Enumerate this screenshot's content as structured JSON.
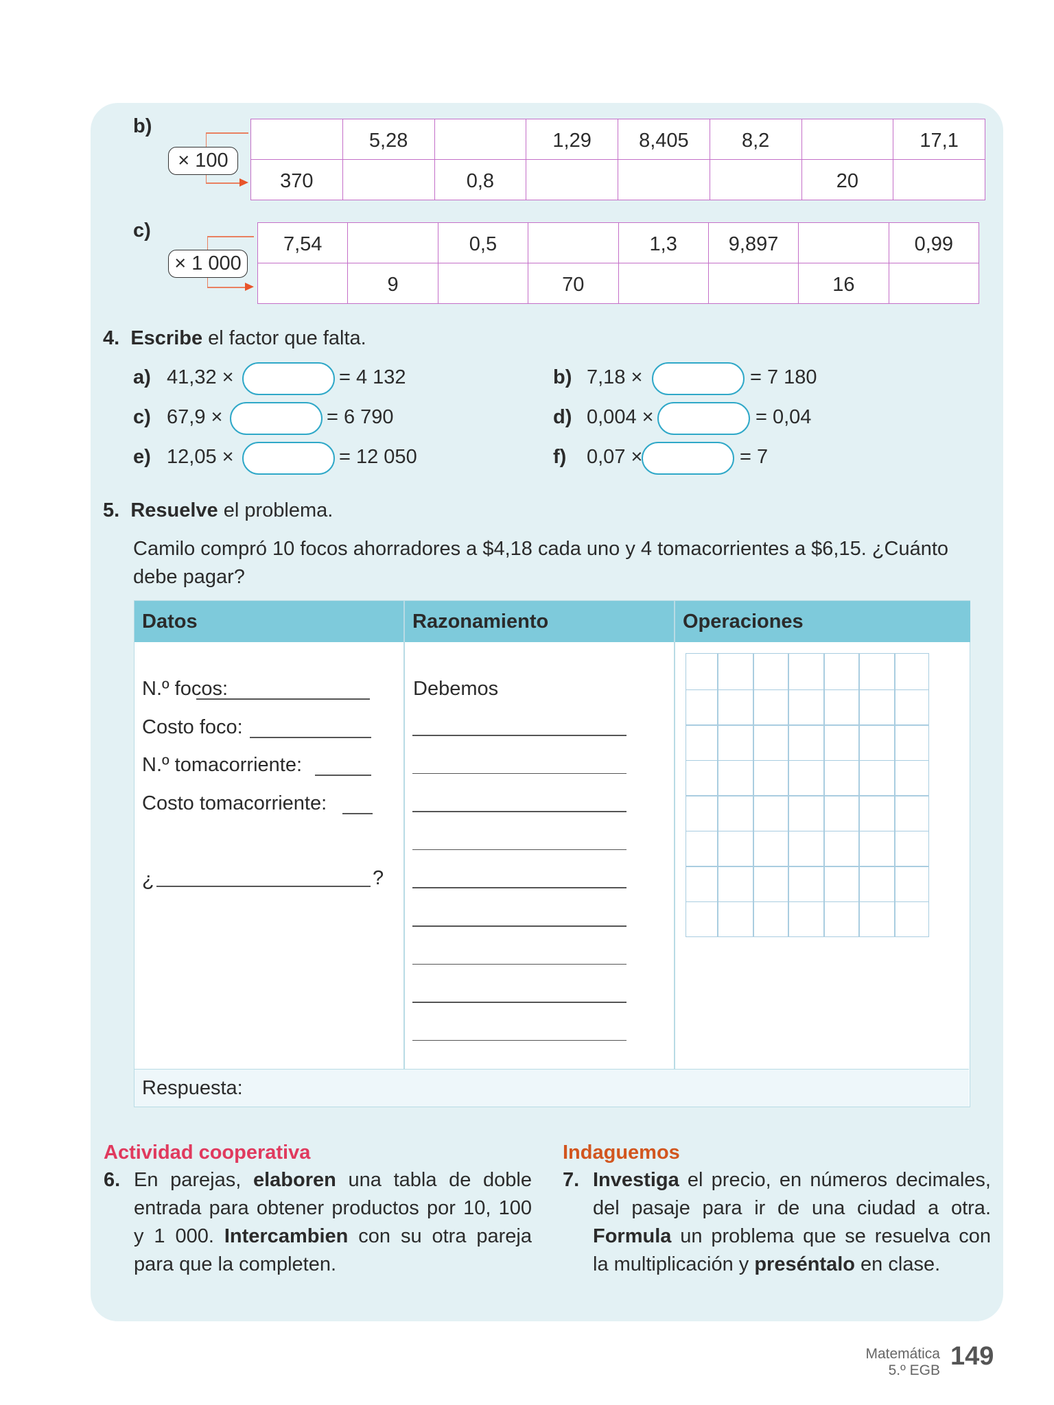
{
  "exercise_3": {
    "b": {
      "label": "b)",
      "multiplier": "× 100",
      "top": [
        "",
        "5,28",
        "",
        "1,29",
        "8,405",
        "8,2",
        "",
        "17,1"
      ],
      "bottom": [
        "370",
        "",
        "0,8",
        "",
        "",
        "",
        "20",
        ""
      ]
    },
    "c": {
      "label": "c)",
      "multiplier": "× 1 000",
      "top": [
        "7,54",
        "",
        "0,5",
        "",
        "1,3",
        "9,897",
        "",
        "0,99"
      ],
      "bottom": [
        "",
        "9",
        "",
        "70",
        "",
        "",
        "16",
        ""
      ]
    }
  },
  "exercise_4": {
    "number": "4.",
    "verb": "Escribe",
    "rest": " el factor que falta.",
    "items": [
      {
        "label": "a)",
        "left": "41,32 ×",
        "right": "= 4 132"
      },
      {
        "label": "b)",
        "left": "7,18 ×",
        "right": "= 7 180"
      },
      {
        "label": "c)",
        "left": "67,9 ×",
        "right": "= 6 790"
      },
      {
        "label": "d)",
        "left": "0,004 ×",
        "right": "= 0,04"
      },
      {
        "label": "e)",
        "left": "12,05 ×",
        "right": "= 12 050"
      },
      {
        "label": "f)",
        "left": "0,07 ×",
        "right": "= 7"
      }
    ]
  },
  "exercise_5": {
    "number": "5.",
    "verb": "Resuelve",
    "rest": " el problema.",
    "problem_line1": "Camilo compró 10 focos ahorradores a $4,18 cada uno y 4 tomacorrientes a $6,15. ¿Cuánto",
    "problem_line2": "debe pagar?",
    "headers": [
      "Datos",
      "Razonamiento",
      "Operaciones"
    ],
    "datos": [
      "N.º focos:",
      "Costo foco:",
      "N.º tomacorriente:",
      "Costo tomacorriente:"
    ],
    "question_open": "¿",
    "question_close": "?",
    "razonamiento_start": "Debemos",
    "answer_label": "Respuesta:"
  },
  "cooperativa": {
    "title": "Actividad cooperativa",
    "number": "6.",
    "lines": [
      [
        "En parejas, ",
        "elaboren",
        " una tabla de doble"
      ],
      [
        "entrada para obtener productos por 10, 100",
        "",
        " "
      ],
      [
        "y 1 000. ",
        "Intercambien",
        " con su otra pareja"
      ],
      [
        "para que la completen.",
        "",
        ""
      ]
    ]
  },
  "indaguemos": {
    "title": "Indaguemos",
    "number": "7.",
    "lines": [
      [
        "",
        "Investiga",
        " el precio, en números decimales,"
      ],
      [
        "del pasaje para ir de una ciudad a otra.",
        "",
        ""
      ],
      [
        "",
        "Formula",
        " un problema que se resuelva con"
      ],
      [
        "la multiplicación y ",
        "preséntalo",
        " en clase."
      ]
    ]
  },
  "footer": {
    "subject": "Matemática",
    "grade": "5.º EGB",
    "page": "149"
  },
  "colors": {
    "panel": "#e3f1f4",
    "table_border": "#c46fc8",
    "header": "#7ecadb",
    "cooperativa": "#e03a5e",
    "indaguemos": "#d2561f",
    "arrow": "#e8542a"
  }
}
